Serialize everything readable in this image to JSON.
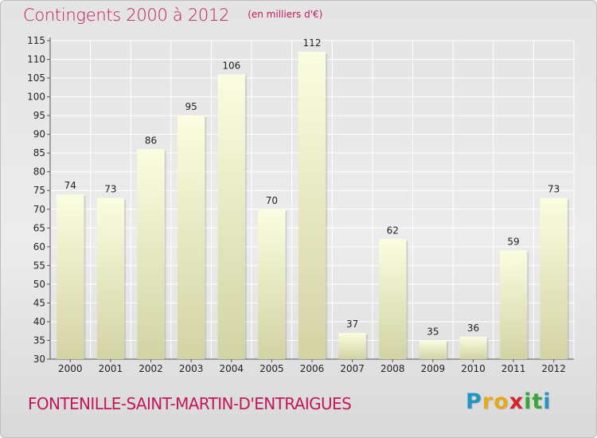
{
  "chart_data": {
    "type": "bar",
    "title": "Contingents 2000 à 2012",
    "subtitle": "(en milliers d'€)",
    "categories": [
      "2000",
      "2001",
      "2002",
      "2003",
      "2004",
      "2005",
      "2006",
      "2007",
      "2008",
      "2009",
      "2010",
      "2011",
      "2012"
    ],
    "values": [
      74,
      73,
      86,
      95,
      106,
      70,
      112,
      37,
      62,
      35,
      36,
      59,
      73
    ],
    "ylim": [
      30,
      115
    ],
    "yticks": [
      30,
      35,
      40,
      45,
      50,
      55,
      60,
      65,
      70,
      75,
      80,
      85,
      90,
      95,
      100,
      105,
      110,
      115
    ],
    "grid": true,
    "bar_color_top": "#fbfde0",
    "bar_color_bottom": "#d2d3a4"
  },
  "footer": {
    "commune": "FONTENILLE-SAINT-MARTIN-D'ENTRAIGUES"
  },
  "logo": {
    "letters": [
      "P",
      "r",
      "o",
      "x",
      "i",
      "t",
      "i"
    ],
    "colors": [
      "#2196c4",
      "#e6a81e",
      "#e6a81e",
      "#d8232a",
      "#3aa53b",
      "#3aa53b",
      "#2196c4"
    ]
  }
}
